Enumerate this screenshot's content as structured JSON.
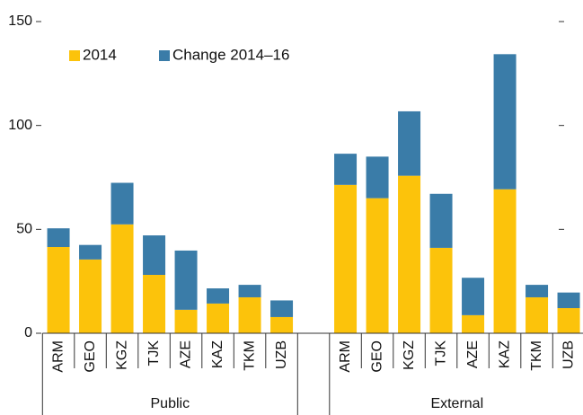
{
  "chart_data": {
    "type": "stacked_bar",
    "categories": [
      "ARM",
      "GEO",
      "KGZ",
      "TJK",
      "AZE",
      "KAZ",
      "TKM",
      "UZB",
      null,
      "ARM",
      "GEO",
      "KGZ",
      "TJK",
      "AZE",
      "KAZ",
      "TKM",
      "UZB"
    ],
    "groups": [
      "Public",
      "External"
    ],
    "series": [
      {
        "name": "2014",
        "color": "#fcc30b",
        "values": [
          41.5,
          35.5,
          52.4,
          28.1,
          11.3,
          14.3,
          17.3,
          7.8,
          null,
          71.4,
          65,
          75.8,
          41.1,
          8.7,
          69.3,
          17.3,
          12.1
        ]
      },
      {
        "name": "Change 2014–16",
        "color": "#3a7ca8",
        "values": [
          9,
          7,
          20,
          19,
          28.5,
          7.3,
          6,
          8,
          null,
          15,
          20,
          31,
          26,
          18,
          65,
          6,
          7.5
        ]
      }
    ],
    "ylim": [
      0,
      150
    ],
    "yticks": [
      0,
      50,
      100,
      150
    ],
    "legend": "upper left"
  }
}
